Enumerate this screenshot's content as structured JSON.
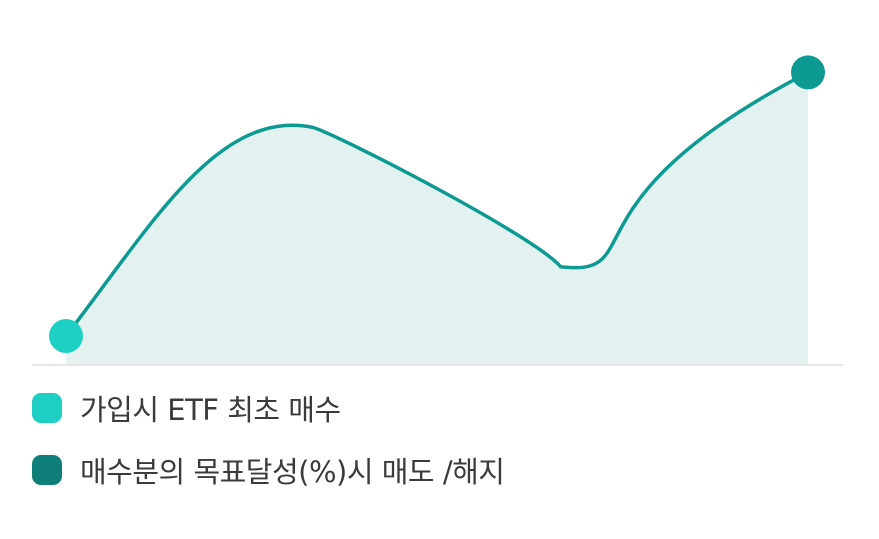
{
  "chart_data": {
    "type": "area",
    "x": [
      0,
      1,
      2,
      3
    ],
    "series": [
      {
        "values": [
          0,
          73,
          30,
          90
        ]
      }
    ],
    "ylim": [
      0,
      100
    ],
    "grid": false,
    "legend_position": "bottom-left"
  },
  "colors": {
    "line": "#0d9a93",
    "area_fill": "#e3f2f1",
    "start_marker": "#1ecfc4",
    "end_marker": "#0d9a93",
    "baseline": "#e6e6e6"
  },
  "legend": {
    "items": [
      {
        "label": "가입시 ETF 최초 매수",
        "color": "#1ecfc4"
      },
      {
        "label": "매수분의 목표달성(%)시 매도 /해지",
        "color": "#0e7f78"
      }
    ]
  }
}
